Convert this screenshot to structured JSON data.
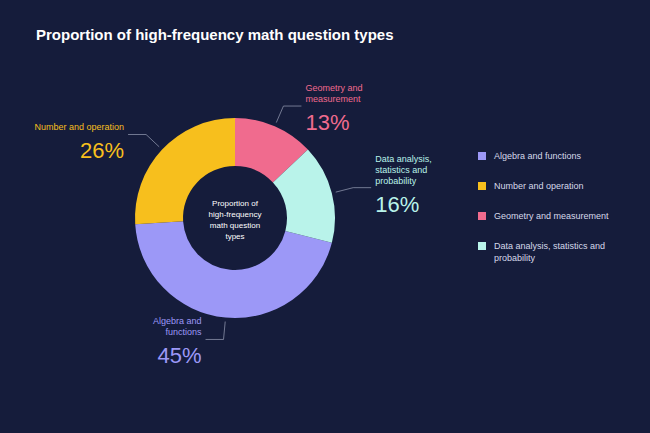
{
  "chart_data": {
    "type": "pie",
    "title": "Proportion of high-frequency math question types",
    "annotation": "Proportion of high-frequency math question types",
    "categories": [
      "Algebra and functions",
      "Number and operation",
      "Geometry and measurement",
      "Data analysis, statistics and probability"
    ],
    "values": [
      45,
      26,
      13,
      16
    ],
    "value_labels": [
      "45%",
      "26%",
      "13%",
      "16%"
    ],
    "colors": [
      "#9c98f7",
      "#f7bf1d",
      "#f06b8e",
      "#b9f3ea"
    ],
    "data_labels": true,
    "legend": "right"
  }
}
